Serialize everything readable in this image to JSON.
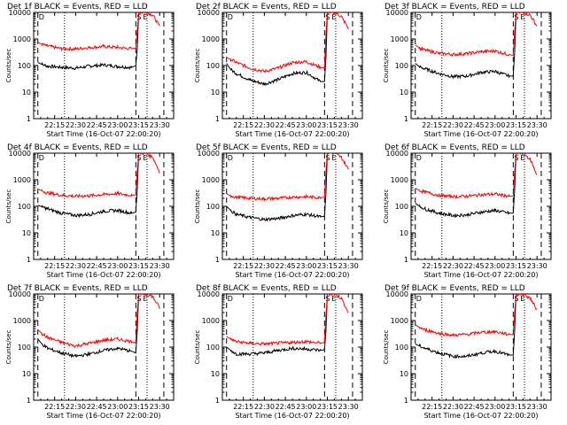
{
  "figure": {
    "xlabel": "Start Time (16-Oct-07 22:00:20)",
    "ylabel": "Counts/sec",
    "x_ticks": [
      "22:15",
      "22:30",
      "22:45",
      "23:00",
      "23:15",
      "23:30"
    ],
    "y_ticks": [
      "1",
      "10",
      "100",
      "1000",
      "10000"
    ],
    "marker_labels": [
      "D",
      "S",
      "E"
    ],
    "colors": {
      "events": "#000000",
      "lld": "#ff0000",
      "axes": "#000000",
      "background": "#ffffff"
    }
  },
  "chart_data": [
    {
      "type": "line",
      "title": "Det 1f BLACK = Events, RED = LLD",
      "xlabel": "Start Time (16-Oct-07 22:00:20)",
      "ylabel": "Counts/sec",
      "ylim": [
        1,
        10000
      ],
      "yscale": "log",
      "series": [
        {
          "name": "Events",
          "color": "#000000",
          "x": [
            "22:03",
            "22:06",
            "22:10",
            "22:20",
            "22:30",
            "22:40",
            "22:50",
            "23:00",
            "23:10",
            "23:13",
            "23:14",
            "23:15"
          ],
          "values": [
            130,
            110,
            95,
            85,
            80,
            95,
            105,
            92,
            85,
            100,
            400,
            10000
          ]
        },
        {
          "name": "LLD",
          "color": "#ff0000",
          "x": [
            "22:03",
            "22:06",
            "22:10",
            "22:20",
            "22:30",
            "22:40",
            "22:50",
            "23:00",
            "23:10",
            "23:13",
            "23:14",
            "23:15",
            "23:20",
            "23:25",
            "23:30"
          ],
          "values": [
            750,
            620,
            540,
            430,
            420,
            480,
            520,
            480,
            430,
            450,
            2000,
            10000,
            10000,
            8000,
            3000
          ]
        }
      ]
    },
    {
      "type": "line",
      "title": "Det 2f BLACK = Events, RED = LLD",
      "xlabel": "Start Time (16-Oct-07 22:00:20)",
      "ylabel": "Counts/sec",
      "ylim": [
        1,
        10000
      ],
      "yscale": "log",
      "series": [
        {
          "name": "Events",
          "color": "#000000",
          "x": [
            "22:03",
            "22:06",
            "22:10",
            "22:20",
            "22:30",
            "22:40",
            "22:50",
            "23:00",
            "23:10",
            "23:13",
            "23:14",
            "23:15"
          ],
          "values": [
            120,
            70,
            50,
            28,
            20,
            30,
            50,
            55,
            25,
            25,
            200,
            10000
          ]
        },
        {
          "name": "LLD",
          "color": "#ff0000",
          "x": [
            "22:03",
            "22:06",
            "22:10",
            "22:20",
            "22:30",
            "22:40",
            "22:50",
            "23:00",
            "23:10",
            "23:13",
            "23:14",
            "23:15",
            "23:20",
            "23:25",
            "23:30"
          ],
          "values": [
            200,
            170,
            130,
            80,
            60,
            80,
            130,
            140,
            85,
            80,
            1500,
            10000,
            10000,
            7000,
            2500
          ]
        }
      ]
    },
    {
      "type": "line",
      "title": "Det 3f BLACK = Events, RED = LLD",
      "xlabel": "Start Time (16-Oct-07 22:00:20)",
      "ylabel": "Counts/sec",
      "ylim": [
        1,
        10000
      ],
      "yscale": "log",
      "series": [
        {
          "name": "Events",
          "color": "#000000",
          "x": [
            "22:03",
            "22:06",
            "22:10",
            "22:20",
            "22:30",
            "22:40",
            "22:50",
            "23:00",
            "23:10",
            "23:13",
            "23:14",
            "23:15"
          ],
          "values": [
            120,
            90,
            75,
            50,
            38,
            40,
            55,
            60,
            40,
            40,
            300,
            10000
          ]
        },
        {
          "name": "LLD",
          "color": "#ff0000",
          "x": [
            "22:03",
            "22:06",
            "22:10",
            "22:20",
            "22:30",
            "22:40",
            "22:50",
            "23:00",
            "23:10",
            "23:13",
            "23:14",
            "23:15",
            "23:20",
            "23:25",
            "23:30"
          ],
          "values": [
            600,
            450,
            380,
            290,
            260,
            280,
            330,
            350,
            260,
            240,
            2000,
            10000,
            10000,
            8000,
            3000
          ]
        }
      ]
    },
    {
      "type": "line",
      "title": "Det 4f BLACK = Events, RED = LLD",
      "xlabel": "Start Time (16-Oct-07 22:00:20)",
      "ylabel": "Counts/sec",
      "ylim": [
        1,
        10000
      ],
      "yscale": "log",
      "series": [
        {
          "name": "Events",
          "color": "#000000",
          "x": [
            "22:03",
            "22:06",
            "22:10",
            "22:20",
            "22:30",
            "22:40",
            "22:50",
            "23:00",
            "23:10",
            "23:13",
            "23:14",
            "23:15"
          ],
          "values": [
            110,
            95,
            80,
            55,
            45,
            50,
            65,
            70,
            55,
            60,
            400,
            10000
          ]
        },
        {
          "name": "LLD",
          "color": "#ff0000",
          "x": [
            "22:03",
            "22:06",
            "22:10",
            "22:20",
            "22:30",
            "22:40",
            "22:50",
            "23:00",
            "23:10",
            "23:13",
            "23:14",
            "23:15",
            "23:20",
            "23:25",
            "23:30"
          ],
          "values": [
            450,
            380,
            320,
            260,
            240,
            250,
            280,
            300,
            260,
            270,
            2000,
            10000,
            10000,
            7000,
            2000
          ]
        }
      ]
    },
    {
      "type": "line",
      "title": "Det 5f BLACK = Events, RED = LLD",
      "xlabel": "Start Time (16-Oct-07 22:00:20)",
      "ylabel": "Counts/sec",
      "ylim": [
        1,
        10000
      ],
      "yscale": "log",
      "series": [
        {
          "name": "Events",
          "color": "#000000",
          "x": [
            "22:03",
            "22:06",
            "22:10",
            "22:20",
            "22:30",
            "22:40",
            "22:50",
            "23:00",
            "23:10",
            "23:13",
            "23:14",
            "23:15"
          ],
          "values": [
            100,
            70,
            50,
            38,
            32,
            35,
            45,
            50,
            40,
            42,
            300,
            10000
          ]
        },
        {
          "name": "LLD",
          "color": "#ff0000",
          "x": [
            "22:03",
            "22:06",
            "22:10",
            "22:20",
            "22:30",
            "22:40",
            "22:50",
            "23:00",
            "23:10",
            "23:13",
            "23:14",
            "23:15",
            "23:20",
            "23:25",
            "23:30"
          ],
          "values": [
            300,
            250,
            220,
            200,
            190,
            200,
            220,
            230,
            210,
            220,
            2000,
            10000,
            10000,
            7000,
            2500
          ]
        }
      ]
    },
    {
      "type": "line",
      "title": "Det 6f BLACK = Events, RED = LLD",
      "xlabel": "Start Time (16-Oct-07 22:00:20)",
      "ylabel": "Counts/sec",
      "ylim": [
        1,
        10000
      ],
      "yscale": "log",
      "series": [
        {
          "name": "Events",
          "color": "#000000",
          "x": [
            "22:03",
            "22:06",
            "22:10",
            "22:20",
            "22:30",
            "22:40",
            "22:50",
            "23:00",
            "23:10",
            "23:13",
            "23:14",
            "23:15"
          ],
          "values": [
            130,
            100,
            80,
            55,
            45,
            48,
            60,
            70,
            55,
            55,
            400,
            10000
          ]
        },
        {
          "name": "LLD",
          "color": "#ff0000",
          "x": [
            "22:03",
            "22:06",
            "22:10",
            "22:20",
            "22:30",
            "22:40",
            "22:50",
            "23:00",
            "23:10",
            "23:13",
            "23:14",
            "23:15",
            "23:20",
            "23:25",
            "23:30"
          ],
          "values": [
            480,
            400,
            340,
            260,
            230,
            240,
            270,
            290,
            240,
            240,
            2000,
            10000,
            10000,
            6000,
            1500
          ]
        }
      ]
    },
    {
      "type": "line",
      "title": "Det 7f BLACK = Events, RED = LLD",
      "xlabel": "Start Time (16-Oct-07 22:00:20)",
      "ylabel": "Counts/sec",
      "ylim": [
        1,
        10000
      ],
      "yscale": "log",
      "series": [
        {
          "name": "Events",
          "color": "#000000",
          "x": [
            "22:03",
            "22:06",
            "22:10",
            "22:20",
            "22:30",
            "22:40",
            "22:50",
            "23:00",
            "23:10",
            "23:13",
            "23:14",
            "23:15"
          ],
          "values": [
            200,
            130,
            90,
            60,
            45,
            55,
            75,
            90,
            70,
            60,
            400,
            10000
          ]
        },
        {
          "name": "LLD",
          "color": "#ff0000",
          "x": [
            "22:03",
            "22:06",
            "22:10",
            "22:20",
            "22:30",
            "22:40",
            "22:50",
            "23:00",
            "23:10",
            "23:13",
            "23:14",
            "23:15",
            "23:20",
            "23:25",
            "23:30"
          ],
          "values": [
            450,
            320,
            230,
            150,
            110,
            140,
            180,
            200,
            160,
            140,
            2000,
            10000,
            10000,
            8000,
            3000
          ]
        }
      ]
    },
    {
      "type": "line",
      "title": "Det 8f BLACK = Events, RED = LLD",
      "xlabel": "Start Time (16-Oct-07 22:00:20)",
      "ylabel": "Counts/sec",
      "ylim": [
        1,
        10000
      ],
      "yscale": "log",
      "series": [
        {
          "name": "Events",
          "color": "#000000",
          "x": [
            "22:03",
            "22:06",
            "22:10",
            "22:20",
            "22:30",
            "22:40",
            "22:50",
            "23:00",
            "23:10",
            "23:13",
            "23:14",
            "23:15"
          ],
          "values": [
            100,
            75,
            55,
            55,
            60,
            75,
            90,
            85,
            75,
            80,
            400,
            10000
          ]
        },
        {
          "name": "LLD",
          "color": "#ff0000",
          "x": [
            "22:03",
            "22:06",
            "22:10",
            "22:20",
            "22:30",
            "22:40",
            "22:50",
            "23:00",
            "23:10",
            "23:13",
            "23:14",
            "23:15",
            "23:20",
            "23:25",
            "23:30"
          ],
          "values": [
            250,
            200,
            160,
            140,
            130,
            140,
            150,
            160,
            140,
            150,
            1500,
            10000,
            10000,
            7000,
            2000
          ]
        }
      ]
    },
    {
      "type": "line",
      "title": "Det 9f BLACK = Events, RED = LLD",
      "xlabel": "Start Time (16-Oct-07 22:00:20)",
      "ylabel": "Counts/sec",
      "ylim": [
        1,
        10000
      ],
      "yscale": "log",
      "series": [
        {
          "name": "Events",
          "color": "#000000",
          "x": [
            "22:03",
            "22:06",
            "22:10",
            "22:20",
            "22:30",
            "22:40",
            "22:50",
            "23:00",
            "23:10",
            "23:13",
            "23:14",
            "23:15"
          ],
          "values": [
            130,
            110,
            90,
            60,
            45,
            45,
            60,
            70,
            50,
            50,
            400,
            10000
          ]
        },
        {
          "name": "LLD",
          "color": "#ff0000",
          "x": [
            "22:03",
            "22:06",
            "22:10",
            "22:20",
            "22:30",
            "22:40",
            "22:50",
            "23:00",
            "23:10",
            "23:13",
            "23:14",
            "23:15",
            "23:20",
            "23:25",
            "23:30"
          ],
          "values": [
            700,
            550,
            450,
            330,
            280,
            300,
            360,
            380,
            300,
            290,
            2000,
            10000,
            10000,
            7000,
            2500
          ]
        }
      ]
    }
  ]
}
